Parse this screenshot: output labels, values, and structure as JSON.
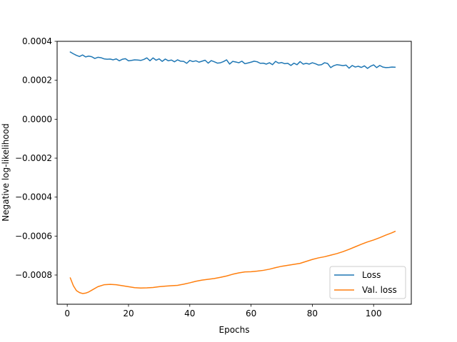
{
  "chart_data": {
    "type": "line",
    "title": "",
    "xlabel": "Epochs",
    "ylabel": "Negative log-likelihood",
    "xlim": [
      -3.3,
      112.3
    ],
    "ylim": [
      -0.00095,
      0.0004
    ],
    "xticks": [
      0,
      20,
      40,
      60,
      80,
      100
    ],
    "xtick_labels": [
      "0",
      "20",
      "40",
      "60",
      "80",
      "100"
    ],
    "yticks": [
      -0.0008,
      -0.0006,
      -0.0004,
      -0.0002,
      0,
      0.0002,
      0.0004
    ],
    "ytick_labels": [
      "−0.0008",
      "−0.0006",
      "−0.0004",
      "−0.0002",
      "0.0000",
      "0.0002",
      "0.0004"
    ],
    "grid": false,
    "legend_position": "lower-right",
    "series": [
      {
        "name": "Loss",
        "color": "#1f77b4",
        "x": [
          1,
          2,
          3,
          4,
          5,
          6,
          7,
          8,
          9,
          10,
          11,
          12,
          13,
          14,
          15,
          16,
          17,
          18,
          19,
          20,
          21,
          22,
          23,
          24,
          25,
          26,
          27,
          28,
          29,
          30,
          31,
          32,
          33,
          34,
          35,
          36,
          37,
          38,
          39,
          40,
          41,
          42,
          43,
          44,
          45,
          46,
          47,
          48,
          49,
          50,
          51,
          52,
          53,
          54,
          55,
          56,
          57,
          58,
          59,
          60,
          61,
          62,
          63,
          64,
          65,
          66,
          67,
          68,
          69,
          70,
          71,
          72,
          73,
          74,
          75,
          76,
          77,
          78,
          79,
          80,
          81,
          82,
          83,
          84,
          85,
          86,
          87,
          88,
          89,
          90,
          91,
          92,
          93,
          94,
          95,
          96,
          97,
          98,
          99,
          100,
          101,
          102,
          103,
          104,
          105,
          106,
          107
        ],
        "y": [
          0.000345,
          0.000336,
          0.000328,
          0.000322,
          0.00033,
          0.00032,
          0.000324,
          0.000321,
          0.000312,
          0.000318,
          0.000316,
          0.00031,
          0.000308,
          0.000309,
          0.000305,
          0.00031,
          0.0003,
          0.000308,
          0.000311,
          0.0003,
          0.000302,
          0.000305,
          0.000304,
          0.000302,
          0.000307,
          0.000315,
          0.0003,
          0.000315,
          0.000303,
          0.00031,
          0.000297,
          0.000309,
          0.0003,
          0.000304,
          0.000295,
          0.000305,
          0.000298,
          0.000297,
          0.000287,
          0.000302,
          0.000296,
          0.0003,
          0.000293,
          0.000298,
          0.000303,
          0.000288,
          0.000301,
          0.000295,
          0.000288,
          0.00029,
          0.000296,
          0.000305,
          0.000283,
          0.000297,
          0.000294,
          0.00029,
          0.000298,
          0.000285,
          0.000289,
          0.000293,
          0.000298,
          0.000295,
          0.000287,
          0.000288,
          0.000283,
          0.00029,
          0.00028,
          0.000297,
          0.000288,
          0.000291,
          0.000285,
          0.000287,
          0.000276,
          0.000288,
          0.00028,
          0.000296,
          0.000283,
          0.000287,
          0.000283,
          0.00029,
          0.000285,
          0.000278,
          0.00028,
          0.00029,
          0.000286,
          0.000265,
          0.000275,
          0.00028,
          0.000278,
          0.000275,
          0.000278,
          0.000262,
          0.000276,
          0.000268,
          0.000272,
          0.000266,
          0.000274,
          0.000261,
          0.000272,
          0.000279,
          0.000265,
          0.000276,
          0.000268,
          0.000265,
          0.000266,
          0.000268,
          0.000267
        ]
      },
      {
        "name": "Val. loss",
        "color": "#ff7f0e",
        "x": [
          1,
          2,
          3,
          4,
          5,
          6,
          7,
          8,
          10,
          12,
          14,
          16,
          18,
          20,
          22,
          24,
          26,
          28,
          30,
          32,
          34,
          36,
          38,
          40,
          42,
          44,
          46,
          48,
          50,
          52,
          54,
          56,
          58,
          60,
          62,
          64,
          66,
          68,
          70,
          72,
          74,
          76,
          78,
          80,
          82,
          84,
          86,
          88,
          90,
          92,
          94,
          96,
          98,
          100,
          102,
          104,
          106,
          107
        ],
        "y": [
          -0.000815,
          -0.000855,
          -0.00088,
          -0.00089,
          -0.000895,
          -0.000893,
          -0.000887,
          -0.000878,
          -0.00086,
          -0.00085,
          -0.000848,
          -0.00085,
          -0.000855,
          -0.00086,
          -0.000865,
          -0.000867,
          -0.000866,
          -0.000864,
          -0.00086,
          -0.000857,
          -0.000855,
          -0.000853,
          -0.000847,
          -0.00084,
          -0.000832,
          -0.000826,
          -0.000822,
          -0.000818,
          -0.000812,
          -0.000805,
          -0.000796,
          -0.000789,
          -0.000784,
          -0.000783,
          -0.00078,
          -0.000776,
          -0.00077,
          -0.000762,
          -0.000755,
          -0.00075,
          -0.000745,
          -0.00074,
          -0.00073,
          -0.00072,
          -0.000712,
          -0.000706,
          -0.000698,
          -0.00069,
          -0.00068,
          -0.000668,
          -0.000655,
          -0.000642,
          -0.00063,
          -0.00062,
          -0.000608,
          -0.000595,
          -0.000583,
          -0.000576
        ]
      }
    ]
  }
}
